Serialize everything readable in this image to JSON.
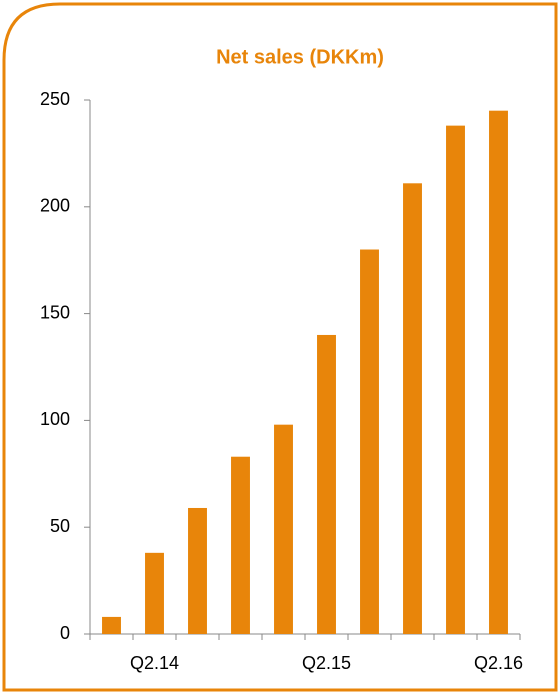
{
  "chart_data": {
    "type": "bar",
    "title": "Net sales (DKKm)",
    "categories": [
      null,
      "Q2.14",
      null,
      null,
      null,
      "Q2.15",
      null,
      null,
      null,
      "Q2.16"
    ],
    "values": [
      8,
      38,
      59,
      83,
      98,
      140,
      180,
      211,
      238,
      245
    ],
    "color": "#e8850a",
    "ylim": [
      0,
      250
    ],
    "yticks": [
      0,
      50,
      100,
      150,
      200,
      250
    ],
    "grid": false
  }
}
